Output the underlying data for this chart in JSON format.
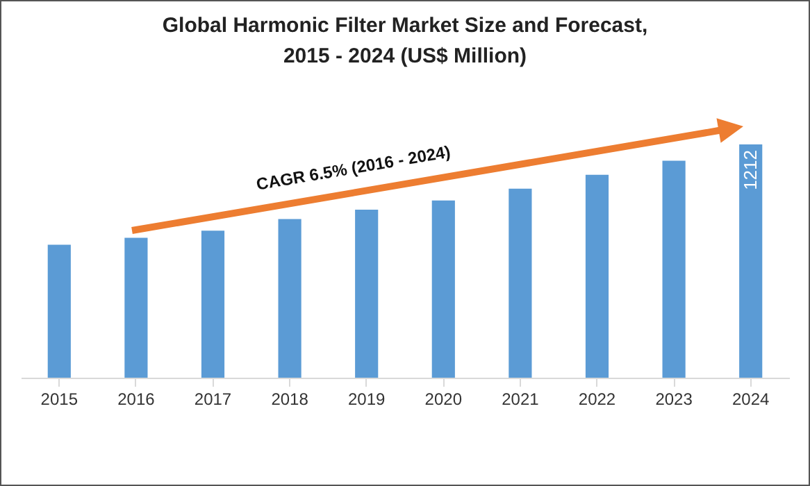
{
  "chart_data": {
    "type": "bar",
    "title": "Global Harmonic Filter Market Size and Forecast, 2015 - 2024 (US$ Million)",
    "categories": [
      "2015",
      "2016",
      "2017",
      "2018",
      "2019",
      "2020",
      "2021",
      "2022",
      "2023",
      "2024"
    ],
    "tick_labels": "x",
    "values": [
      691,
      727,
      764,
      824,
      873,
      921,
      982,
      1054,
      1127,
      1212
    ],
    "value_labels": [
      null,
      null,
      null,
      null,
      null,
      null,
      null,
      null,
      null,
      "1212"
    ],
    "color": "#5b9bd5",
    "grid": false,
    "legend": false,
    "annotations": [
      "CAGR 6.5% (2016 - 2024)"
    ]
  }
}
